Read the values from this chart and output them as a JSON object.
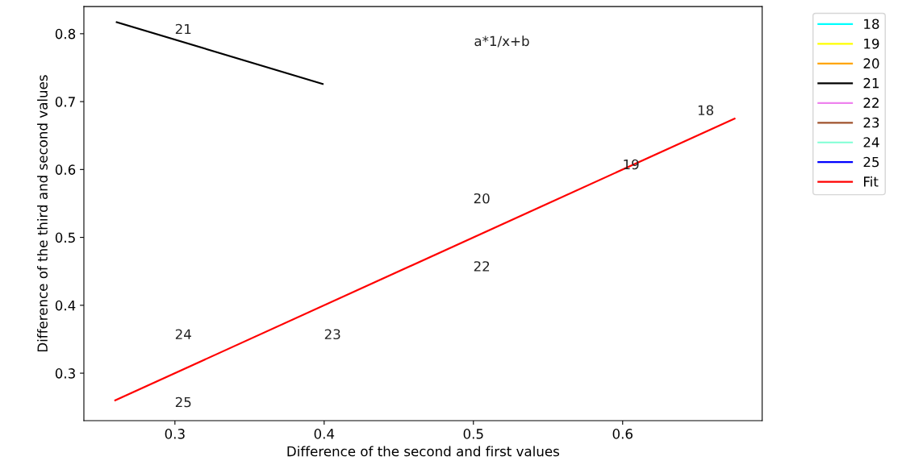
{
  "chart_data": {
    "type": "line",
    "xlabel": "Difference of the second and first values",
    "ylabel": "Difference of the third and second values",
    "xlim": [
      0.239,
      0.6935
    ],
    "ylim": [
      0.23,
      0.84
    ],
    "xticks": [
      0.3,
      0.4,
      0.5,
      0.6
    ],
    "yticks": [
      0.3,
      0.4,
      0.5,
      0.6,
      0.7,
      0.8
    ],
    "grid": false,
    "legend": "top right",
    "marker": "none",
    "line_style": "solid",
    "series": [
      {
        "name": "18",
        "color": "#00ffff"
      },
      {
        "name": "19",
        "color": "#ffff00"
      },
      {
        "name": "20",
        "color": "#ffa500"
      },
      {
        "name": "21",
        "color": "#000000",
        "x": [
          0.261,
          0.399
        ],
        "values": [
          0.817,
          0.726
        ]
      },
      {
        "name": "22",
        "color": "#ee82ee"
      },
      {
        "name": "23",
        "color": "#a0522d"
      },
      {
        "name": "24",
        "color": "#7fffd4"
      },
      {
        "name": "25",
        "color": "#0000ff"
      },
      {
        "name": "Fit",
        "color": "#ff0000",
        "x": [
          0.26,
          0.675
        ],
        "values": [
          0.26,
          0.675
        ]
      }
    ],
    "annotations": [
      "18",
      "19",
      "20",
      "21",
      "22",
      "23",
      "24",
      "25",
      "a*1/x+b"
    ]
  }
}
